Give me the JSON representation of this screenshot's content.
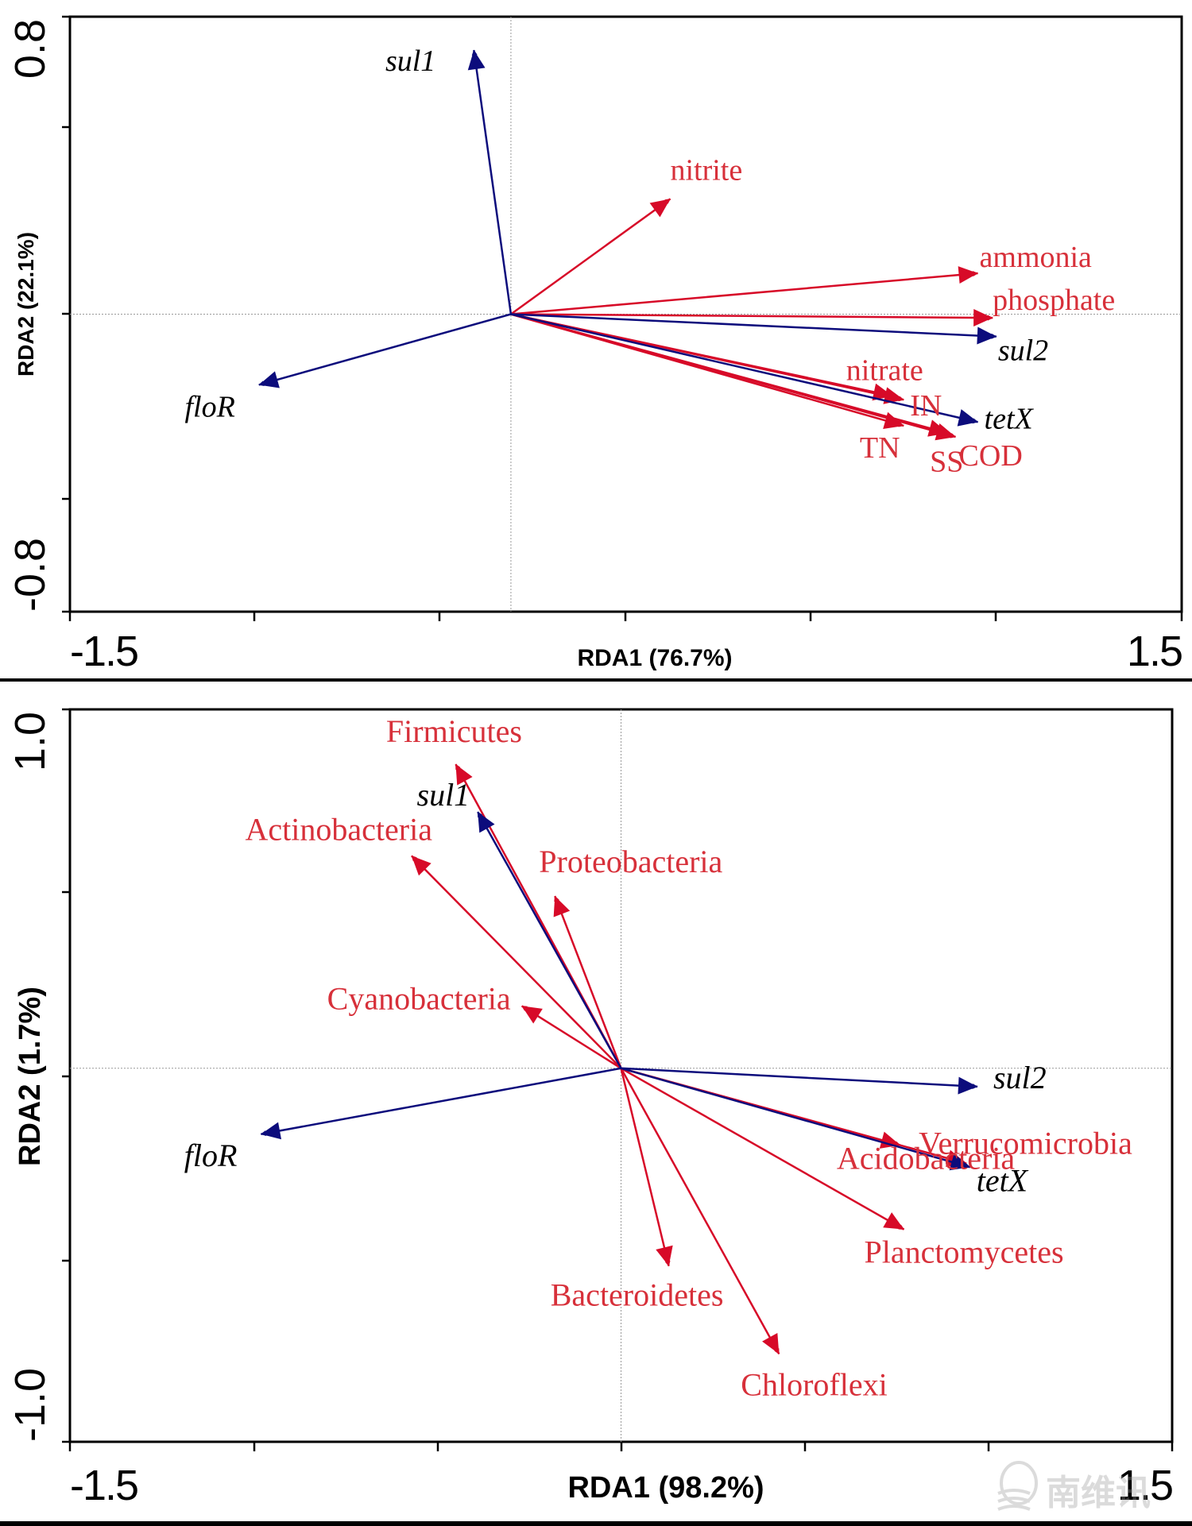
{
  "chart_data": [
    {
      "type": "biplot",
      "panel": "top",
      "xlabel": "RDA1 (76.7%)",
      "ylabel": "RDA2 (22.1%)",
      "xlim": [
        -1.5,
        1.5
      ],
      "ylim": [
        -0.8,
        0.8
      ],
      "x_tick_labels": [
        "-1.5",
        "1.5"
      ],
      "y_tick_labels": [
        "0.8",
        "-0.8"
      ],
      "origin": [
        -0.31,
        0.0
      ],
      "grid": "dotted zero lines",
      "colors": {
        "gene": "#0c0c7c",
        "environment": "#d70a28",
        "env_label": "#d7303a"
      },
      "arrows": [
        {
          "name": "sul1",
          "group": "gene",
          "x": -0.41,
          "y": 0.71
        },
        {
          "name": "floR",
          "group": "gene",
          "x": -0.99,
          "y": -0.19
        },
        {
          "name": "sul2",
          "group": "gene",
          "x": 1.0,
          "y": -0.06
        },
        {
          "name": "tetX",
          "group": "gene",
          "x": 0.95,
          "y": -0.29
        },
        {
          "name": "nitrite",
          "group": "environment",
          "x": 0.12,
          "y": 0.31
        },
        {
          "name": "ammonia",
          "group": "environment",
          "x": 0.95,
          "y": 0.11
        },
        {
          "name": "phosphate",
          "group": "environment",
          "x": 0.99,
          "y": -0.01
        },
        {
          "name": "nitrate",
          "group": "environment",
          "x": 0.72,
          "y": -0.22
        },
        {
          "name": "IN",
          "group": "environment",
          "x": 0.75,
          "y": -0.23
        },
        {
          "name": "TN",
          "group": "environment",
          "x": 0.75,
          "y": -0.3
        },
        {
          "name": "SS",
          "group": "environment",
          "x": 0.87,
          "y": -0.32
        },
        {
          "name": "COD",
          "group": "environment",
          "x": 0.89,
          "y": -0.33
        }
      ]
    },
    {
      "type": "biplot",
      "panel": "bottom",
      "xlabel": "RDA1 (98.2%)",
      "ylabel": "RDA2 (1.7%)",
      "xlim": [
        -1.5,
        1.5
      ],
      "ylim": [
        -1.0,
        1.0
      ],
      "x_tick_labels": [
        "-1.5",
        "1.5"
      ],
      "y_tick_labels": [
        "1.0",
        "-1.0"
      ],
      "origin": [
        0.0,
        0.02
      ],
      "grid": "dotted zero lines",
      "colors": {
        "gene": "#0c0c7c",
        "environment": "#d70a28",
        "env_label": "#d7303a"
      },
      "arrows": [
        {
          "name": "sul1",
          "group": "gene",
          "x": -0.39,
          "y": 0.72
        },
        {
          "name": "floR",
          "group": "gene",
          "x": -0.98,
          "y": -0.16
        },
        {
          "name": "sul2",
          "group": "gene",
          "x": 0.97,
          "y": -0.03
        },
        {
          "name": "tetX",
          "group": "gene",
          "x": 0.95,
          "y": -0.25
        },
        {
          "name": "Firmicutes",
          "group": "environment",
          "x": -0.45,
          "y": 0.85
        },
        {
          "name": "Actinobacteria",
          "group": "environment",
          "x": -0.57,
          "y": 0.6
        },
        {
          "name": "Proteobacteria",
          "group": "environment",
          "x": -0.18,
          "y": 0.49
        },
        {
          "name": "Cyanobacteria",
          "group": "environment",
          "x": -0.27,
          "y": 0.19
        },
        {
          "name": "Verrucomicrobia",
          "group": "environment",
          "x": 0.94,
          "y": -0.24
        },
        {
          "name": "Acidobacteria",
          "group": "environment",
          "x": 0.76,
          "y": -0.19
        },
        {
          "name": "Planctomycetes",
          "group": "environment",
          "x": 0.77,
          "y": -0.42
        },
        {
          "name": "Bacteroidetes",
          "group": "environment",
          "x": 0.13,
          "y": -0.52
        },
        {
          "name": "Chloroflexi",
          "group": "environment",
          "x": 0.43,
          "y": -0.76
        }
      ]
    }
  ],
  "panels": {
    "top": {
      "xlabel": "RDA1 (76.7%)",
      "ylabel": "RDA2 (22.1%)",
      "x_min_label": "-1.5",
      "x_max_label": "1.5",
      "y_max_label": "0.8",
      "y_min_label": "-0.8"
    },
    "bottom": {
      "xlabel": "RDA1 (98.2%)",
      "ylabel": "RDA2 (1.7%)",
      "x_min_label": "-1.5",
      "x_max_label": "1.5",
      "y_max_label": "1.0",
      "y_min_label": "-1.0"
    }
  },
  "watermark": {
    "text": "南维讯"
  }
}
